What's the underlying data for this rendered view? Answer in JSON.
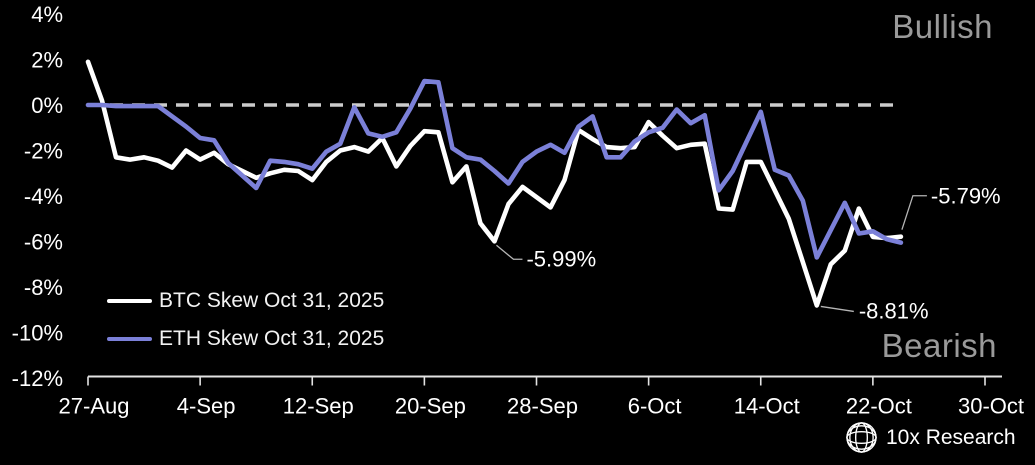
{
  "branding": {
    "logo_text": "10x Research",
    "logo_icon": "wireframe-globe-icon"
  },
  "chart_data": {
    "type": "line",
    "x": [
      "27-Aug",
      "28-Aug",
      "29-Aug",
      "30-Aug",
      "31-Aug",
      "1-Sep",
      "2-Sep",
      "3-Sep",
      "4-Sep",
      "5-Sep",
      "6-Sep",
      "7-Sep",
      "8-Sep",
      "9-Sep",
      "10-Sep",
      "11-Sep",
      "12-Sep",
      "13-Sep",
      "14-Sep",
      "15-Sep",
      "16-Sep",
      "17-Sep",
      "18-Sep",
      "19-Sep",
      "20-Sep",
      "21-Sep",
      "22-Sep",
      "23-Sep",
      "24-Sep",
      "25-Sep",
      "26-Sep",
      "27-Sep",
      "28-Sep",
      "29-Sep",
      "30-Sep",
      "1-Oct",
      "2-Oct",
      "3-Oct",
      "4-Oct",
      "5-Oct",
      "6-Oct",
      "7-Oct",
      "8-Oct",
      "9-Oct",
      "10-Oct",
      "11-Oct",
      "12-Oct",
      "13-Oct",
      "14-Oct",
      "15-Oct",
      "16-Oct",
      "17-Oct",
      "18-Oct",
      "19-Oct",
      "20-Oct",
      "21-Oct",
      "22-Oct",
      "23-Oct",
      "24-Oct"
    ],
    "series": [
      {
        "name": "BTC Skew Oct 31, 2025",
        "color": "#ffffff",
        "values": [
          1.9,
          0.2,
          -2.3,
          -2.4,
          -2.3,
          -2.45,
          -2.75,
          -2.0,
          -2.4,
          -2.1,
          -2.6,
          -2.9,
          -3.2,
          -3.0,
          -2.85,
          -2.9,
          -3.3,
          -2.5,
          -2.0,
          -1.85,
          -2.05,
          -1.45,
          -2.7,
          -1.8,
          -1.15,
          -1.2,
          -3.4,
          -2.7,
          -5.2,
          -5.99,
          -4.35,
          -3.6,
          -4.05,
          -4.5,
          -3.3,
          -1.1,
          -1.5,
          -1.85,
          -1.9,
          -1.85,
          -0.75,
          -1.35,
          -1.9,
          -1.75,
          -1.7,
          -4.55,
          -4.6,
          -2.5,
          -2.5,
          -3.75,
          -5.0,
          -6.9,
          -8.81,
          -7.0,
          -6.4,
          -4.55,
          -5.8,
          -5.85,
          -5.79
        ]
      },
      {
        "name": "ETH Skew Oct 31, 2025",
        "color": "#7b80d8",
        "values": [
          0,
          0,
          -0.05,
          -0.05,
          -0.05,
          -0.05,
          -0.5,
          -0.95,
          -1.45,
          -1.55,
          -2.55,
          -3.1,
          -3.65,
          -2.45,
          -2.5,
          -2.6,
          -2.8,
          -2.05,
          -1.7,
          -0.1,
          -1.25,
          -1.4,
          -1.2,
          -0.15,
          1.05,
          1.0,
          -1.9,
          -2.3,
          -2.4,
          -2.9,
          -3.45,
          -2.5,
          -2.05,
          -1.75,
          -2.1,
          -0.95,
          -0.5,
          -2.3,
          -2.3,
          -1.6,
          -1.2,
          -1.0,
          -0.2,
          -0.8,
          -0.45,
          -3.75,
          -2.9,
          -1.6,
          -0.3,
          -2.85,
          -3.1,
          -4.2,
          -6.7,
          -5.5,
          -4.3,
          -5.65,
          -5.55,
          -5.9,
          -6.05
        ]
      }
    ],
    "y_ticks": [
      4,
      2,
      0,
      -2,
      -4,
      -6,
      -8,
      -10,
      -12
    ],
    "y_tick_suffix": "%",
    "ylim": [
      -12,
      4
    ],
    "x_ticks": [
      {
        "label": "27-Aug",
        "day_index": 0
      },
      {
        "label": "4-Sep",
        "day_index": 8
      },
      {
        "label": "12-Sep",
        "day_index": 16
      },
      {
        "label": "20-Sep",
        "day_index": 24
      },
      {
        "label": "28-Sep",
        "day_index": 32
      },
      {
        "label": "6-Oct",
        "day_index": 40
      },
      {
        "label": "14-Oct",
        "day_index": 48
      },
      {
        "label": "22-Oct",
        "day_index": 56
      },
      {
        "label": "30-Oct",
        "day_index": 64
      }
    ],
    "zero_line": {
      "value": 0,
      "style": "dashed"
    },
    "grid": false,
    "legend_position": "bottom-left",
    "annotations": [
      {
        "label": "-5.99%",
        "series_index": 0,
        "point_index": 29,
        "leader": [
          [
            2,
            4
          ],
          [
            19,
            18
          ],
          [
            28,
            18
          ]
        ],
        "text_dx": 32,
        "text_dy": 25
      },
      {
        "label": "-8.81%",
        "series_index": 0,
        "point_index": 52,
        "leader": [
          [
            4,
            1
          ],
          [
            37,
            6
          ]
        ],
        "text_dx": 42,
        "text_dy": 13
      },
      {
        "label": "-5.79%",
        "series_index": 0,
        "point_index": 58,
        "leader": [
          [
            1,
            -7
          ],
          [
            12,
            -41
          ],
          [
            26,
            -41
          ]
        ],
        "text_dx": 30,
        "text_dy": -33
      }
    ],
    "region_labels": {
      "top_right": "Bullish",
      "bottom_right": "Bearish"
    },
    "colors": {
      "background": "#000000",
      "zero_line": "#cccccc",
      "axis": "#e3e3e3",
      "tick_label": "#ffffff",
      "leader": "#b5b5b5",
      "annotation_text": "#ffffff",
      "region_label": "#9a9a9a"
    }
  }
}
